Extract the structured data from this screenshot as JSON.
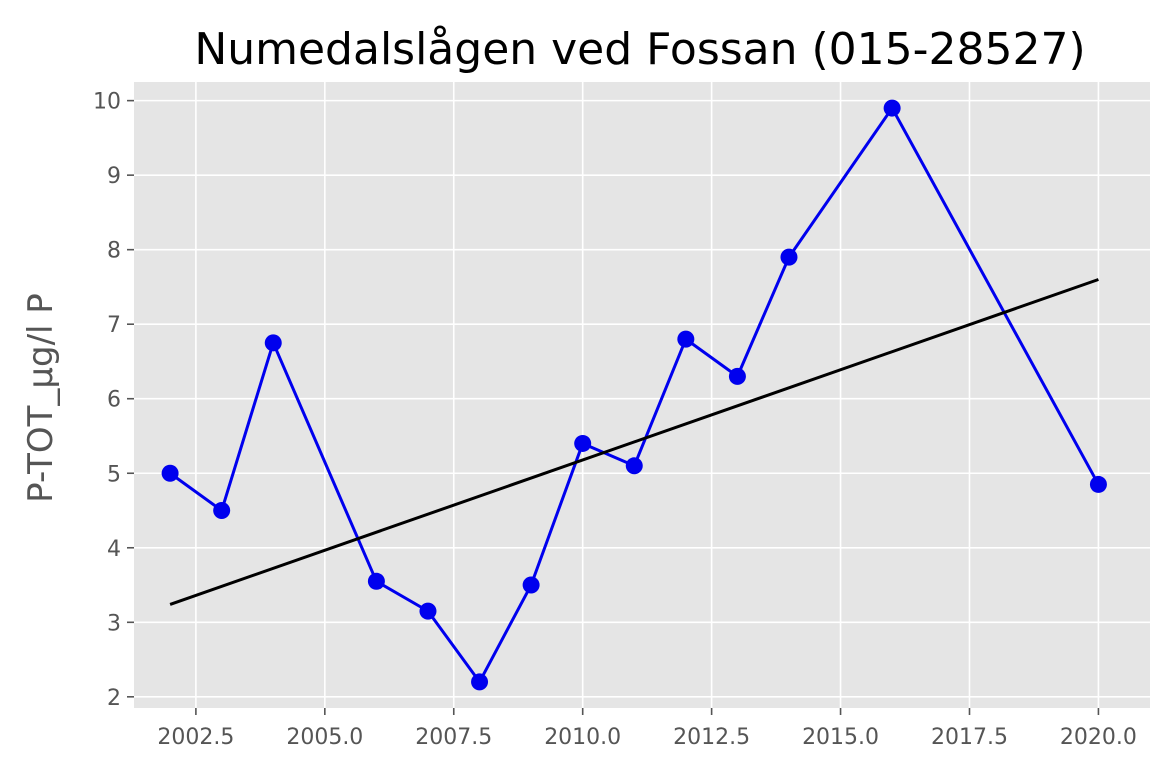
{
  "chart_data": {
    "type": "line",
    "title": "Numedalslågen ved Fossan (015-28527)",
    "xlabel": "",
    "ylabel": "P-TOT_µg/l P",
    "xlim": [
      2001.3,
      2021.0
    ],
    "ylim": [
      1.85,
      10.25
    ],
    "xticks": [
      2002.5,
      2005.0,
      2007.5,
      2010.0,
      2012.5,
      2015.0,
      2017.5,
      2020.0
    ],
    "xtick_labels": [
      "2002.5",
      "2005.0",
      "2007.5",
      "2010.0",
      "2012.5",
      "2015.0",
      "2017.5",
      "2020.0"
    ],
    "yticks": [
      2,
      3,
      4,
      5,
      6,
      7,
      8,
      9,
      10
    ],
    "ytick_labels": [
      "2",
      "3",
      "4",
      "5",
      "6",
      "7",
      "8",
      "9",
      "10"
    ],
    "grid": true,
    "style": "ggplot",
    "series": [
      {
        "color": "#0000ee",
        "marker": "circle",
        "x": [
          2002,
          2003,
          2004,
          2006,
          2007,
          2008,
          2009,
          2010,
          2011,
          2012,
          2013,
          2014,
          2016,
          2020
        ],
        "y": [
          5.0,
          4.5,
          6.75,
          3.55,
          3.15,
          2.2,
          3.5,
          5.4,
          5.1,
          6.8,
          6.3,
          7.9,
          9.9,
          4.85
        ]
      },
      {
        "color": "#000000",
        "marker": "none",
        "x": [
          2002,
          2020
        ],
        "y": [
          3.24,
          7.6
        ]
      }
    ]
  }
}
